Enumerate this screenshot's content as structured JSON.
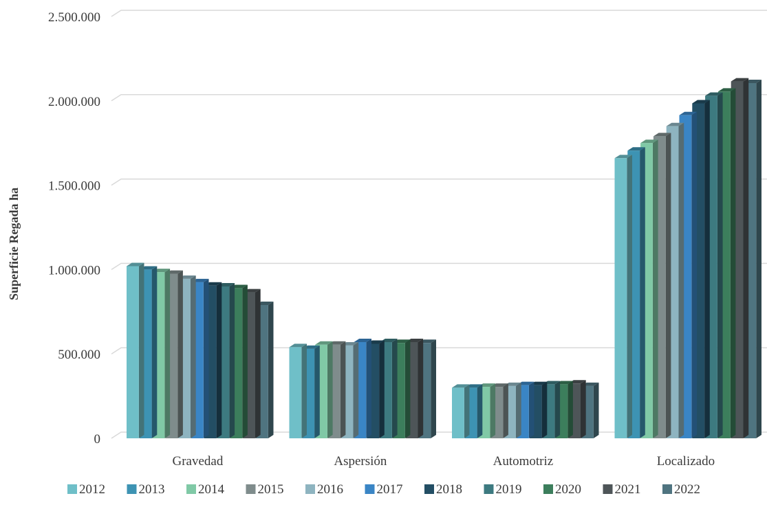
{
  "chart_data": {
    "type": "bar",
    "ylabel": "Superficie Regada ha",
    "xlabel": "",
    "ylim": [
      0,
      2500000
    ],
    "yticks": [
      "0",
      "500.000",
      "1.000.000",
      "1.500.000",
      "2.000.000",
      "2.500.000"
    ],
    "categories": [
      "Gravedad",
      "Aspersión",
      "Automotriz",
      "Localizado"
    ],
    "grid": true,
    "legend_position": "bottom",
    "series": [
      {
        "name": "2012",
        "color": "#6fbfc8",
        "values": [
          1020000,
          540000,
          300000,
          1660000
        ]
      },
      {
        "name": "2013",
        "color": "#3d93b3",
        "values": [
          1000000,
          530000,
          300000,
          1705000
        ]
      },
      {
        "name": "2014",
        "color": "#80c9a6",
        "values": [
          985000,
          555000,
          305000,
          1750000
        ]
      },
      {
        "name": "2015",
        "color": "#7f8c8c",
        "values": [
          975000,
          555000,
          305000,
          1790000
        ]
      },
      {
        "name": "2016",
        "color": "#8eb4c0",
        "values": [
          945000,
          550000,
          310000,
          1850000
        ]
      },
      {
        "name": "2017",
        "color": "#3a85c5",
        "values": [
          925000,
          570000,
          315000,
          1915000
        ]
      },
      {
        "name": "2018",
        "color": "#234e64",
        "values": [
          905000,
          560000,
          315000,
          1985000
        ]
      },
      {
        "name": "2019",
        "color": "#3d7a80",
        "values": [
          900000,
          570000,
          320000,
          2030000
        ]
      },
      {
        "name": "2020",
        "color": "#3c7e5c",
        "values": [
          890000,
          565000,
          320000,
          2055000
        ]
      },
      {
        "name": "2021",
        "color": "#4e5558",
        "values": [
          865000,
          570000,
          325000,
          2115000
        ]
      },
      {
        "name": "2022",
        "color": "#4f7480",
        "values": [
          790000,
          565000,
          310000,
          2105000
        ]
      }
    ]
  }
}
